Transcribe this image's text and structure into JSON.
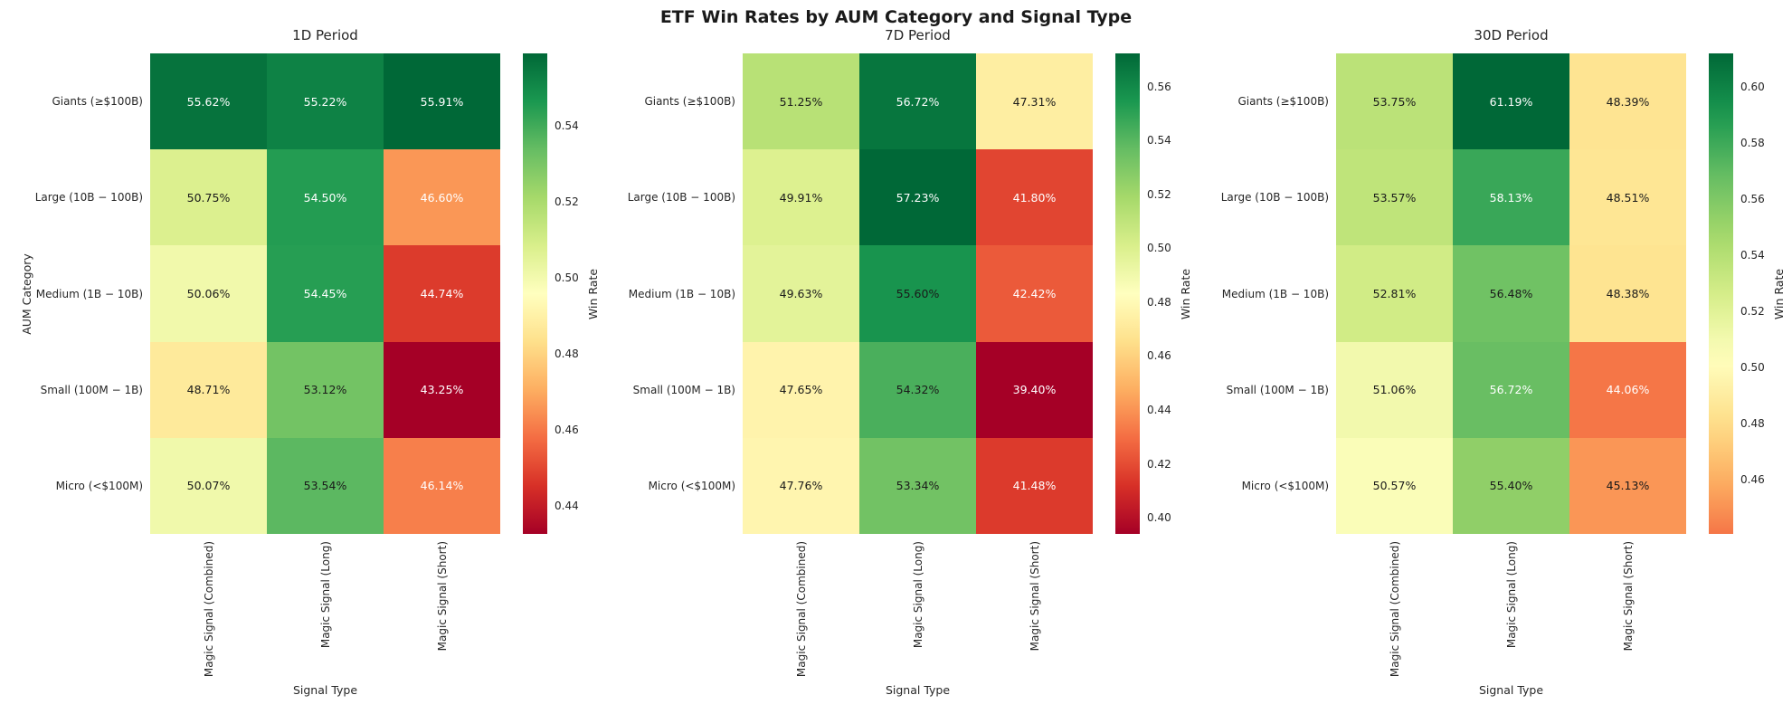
{
  "figure_title": "ETF Win Rates by AUM Category and Signal Type",
  "axes": {
    "x_label": "Signal Type",
    "y_label": "AUM Category",
    "colorbar_label": "Win Rate"
  },
  "row_labels": [
    "Giants (≥$100B)",
    "Large (10B − 100B)",
    "Medium (1B − 10B)",
    "Small (100M − 1B)",
    "Micro (<$100M)"
  ],
  "col_labels": [
    "Magic Signal (Combined)",
    "Magic Signal (Long)",
    "Magic Signal (Short)"
  ],
  "chart_data": [
    {
      "type": "heatmap",
      "title": "1D Period",
      "rows": [
        "Giants (≥$100B)",
        "Large (10B − 100B)",
        "Medium (1B − 10B)",
        "Small (100M − 1B)",
        "Micro (<$100M)"
      ],
      "columns": [
        "Magic Signal (Combined)",
        "Magic Signal (Long)",
        "Magic Signal (Short)"
      ],
      "values_pct": [
        [
          55.62,
          55.22,
          55.91
        ],
        [
          50.75,
          54.5,
          46.6
        ],
        [
          50.06,
          54.45,
          44.74
        ],
        [
          48.71,
          53.12,
          43.25
        ],
        [
          50.07,
          53.54,
          46.14
        ]
      ],
      "colorbar": {
        "label": "Win Rate",
        "ticks": [
          0.54,
          0.52,
          0.5,
          0.48,
          0.46,
          0.44
        ],
        "axis_range": [
          0.4325,
          0.5591
        ],
        "color_norm_range": [
          0.4325,
          0.5591
        ]
      }
    },
    {
      "type": "heatmap",
      "title": "7D Period",
      "rows": [
        "Giants (≥$100B)",
        "Large (10B − 100B)",
        "Medium (1B − 10B)",
        "Small (100M − 1B)",
        "Micro (<$100M)"
      ],
      "columns": [
        "Magic Signal (Combined)",
        "Magic Signal (Long)",
        "Magic Signal (Short)"
      ],
      "values_pct": [
        [
          51.25,
          56.72,
          47.31
        ],
        [
          49.91,
          57.23,
          41.8
        ],
        [
          49.63,
          55.6,
          42.42
        ],
        [
          47.65,
          54.32,
          39.4
        ],
        [
          47.76,
          53.34,
          41.48
        ]
      ],
      "colorbar": {
        "label": "Win Rate",
        "ticks": [
          0.56,
          0.54,
          0.52,
          0.5,
          0.48,
          0.46,
          0.44,
          0.42,
          0.4
        ],
        "axis_range": [
          0.394,
          0.5723
        ],
        "color_norm_range": [
          0.394,
          0.5723
        ]
      }
    },
    {
      "type": "heatmap",
      "title": "30D Period",
      "rows": [
        "Giants (≥$100B)",
        "Large (10B − 100B)",
        "Medium (1B − 10B)",
        "Small (100M − 1B)",
        "Micro (<$100M)"
      ],
      "columns": [
        "Magic Signal (Combined)",
        "Magic Signal (Long)",
        "Magic Signal (Short)"
      ],
      "values_pct": [
        [
          53.75,
          61.19,
          48.39
        ],
        [
          53.57,
          58.13,
          48.51
        ],
        [
          52.81,
          56.48,
          48.38
        ],
        [
          51.06,
          56.72,
          44.06
        ],
        [
          50.57,
          55.4,
          45.13
        ]
      ],
      "colorbar": {
        "label": "Win Rate",
        "ticks": [
          0.6,
          0.58,
          0.56,
          0.54,
          0.52,
          0.5,
          0.48,
          0.46
        ],
        "axis_range": [
          0.4406,
          0.6119
        ],
        "color_norm_range": [
          0.394,
          0.6119
        ]
      }
    }
  ],
  "value_format": "percent_2dp",
  "colors": {
    "colormap": "RdYlGn",
    "cmap_low": "#a50026",
    "cmap_mid": "#ffffbf",
    "cmap_high": "#006837",
    "annotation_dark": "#1a1a1a",
    "annotation_light": "#ffffff"
  }
}
